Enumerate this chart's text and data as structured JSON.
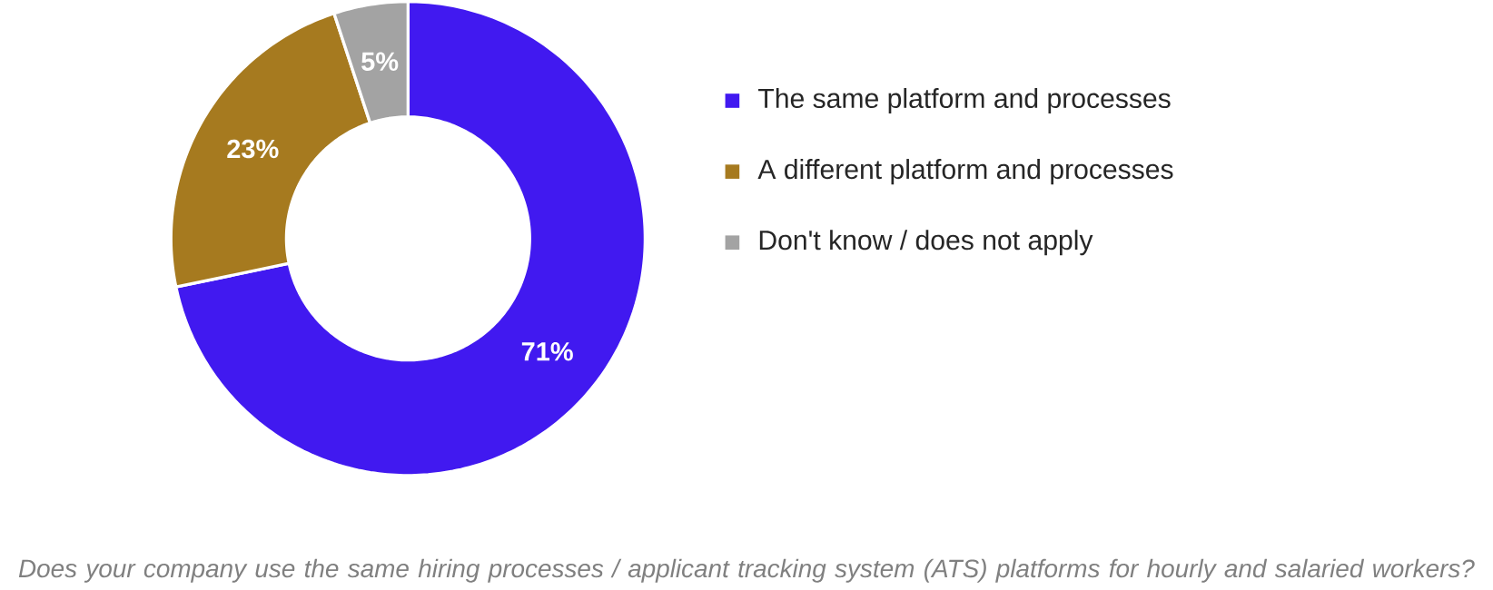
{
  "chart_data": {
    "type": "donut",
    "categories": [
      "The same platform and processes",
      "A different platform and processes",
      "Don't know / does not apply"
    ],
    "values": [
      71,
      23,
      5
    ],
    "colors": [
      "#4119f0",
      "#a67a1f",
      "#a3a3a3"
    ],
    "value_labels": [
      "71%",
      "23%",
      "5%"
    ],
    "legend": "right",
    "annotations": [
      "Does your company use the same hiring processes / applicant tracking system (ATS) platforms for hourly and salaried workers?"
    ]
  }
}
